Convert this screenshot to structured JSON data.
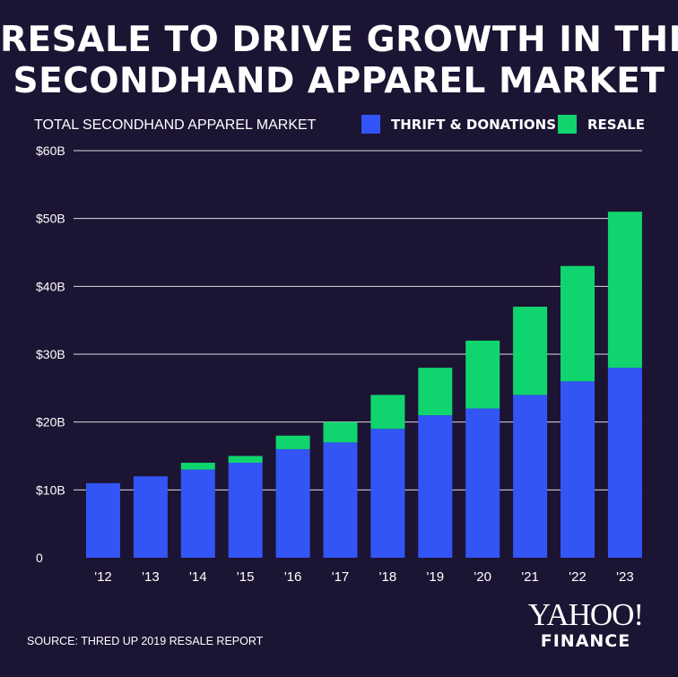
{
  "title": {
    "line1": "RESALE TO DRIVE GROWTH IN THE",
    "line2": "SECONDHAND APPAREL MARKET"
  },
  "subtitle": "TOTAL SECONDHAND APPAREL MARKET",
  "source": "SOURCE:  THRED UP 2019 RESALE REPORT",
  "logo": {
    "line1": "YAHOO!",
    "line2": "FINANCE"
  },
  "colors": {
    "background": "#1c1433",
    "thrift": "#3355f6",
    "resale": "#10d56e",
    "grid": "#ffffff"
  },
  "chart_data": {
    "type": "bar",
    "stacked": true,
    "title": "RESALE TO DRIVE GROWTH IN THE SECONDHAND APPAREL MARKET",
    "subtitle": "TOTAL SECONDHAND APPAREL MARKET",
    "categories": [
      "'12",
      "'13",
      "'14",
      "'15",
      "'16",
      "'17",
      "'18",
      "'19",
      "'20",
      "'21",
      "'22",
      "'23"
    ],
    "series": [
      {
        "name": "THRIFT & DONATIONS",
        "color": "#3355f6",
        "values": [
          11,
          12,
          13,
          14,
          16,
          17,
          19,
          21,
          22,
          24,
          26,
          28
        ]
      },
      {
        "name": "RESALE",
        "color": "#10d56e",
        "values": [
          0,
          0,
          1,
          1,
          2,
          3,
          5,
          7,
          10,
          13,
          17,
          23
        ]
      }
    ],
    "ylim": [
      0,
      60
    ],
    "yticks": [
      0,
      10,
      20,
      30,
      40,
      50,
      60
    ],
    "ytick_labels": [
      "0",
      "$10B",
      "$20B",
      "$30B",
      "$40B",
      "$50B",
      "$60B"
    ],
    "unit": "billions USD",
    "grid": true,
    "legend_position": "top-right"
  }
}
